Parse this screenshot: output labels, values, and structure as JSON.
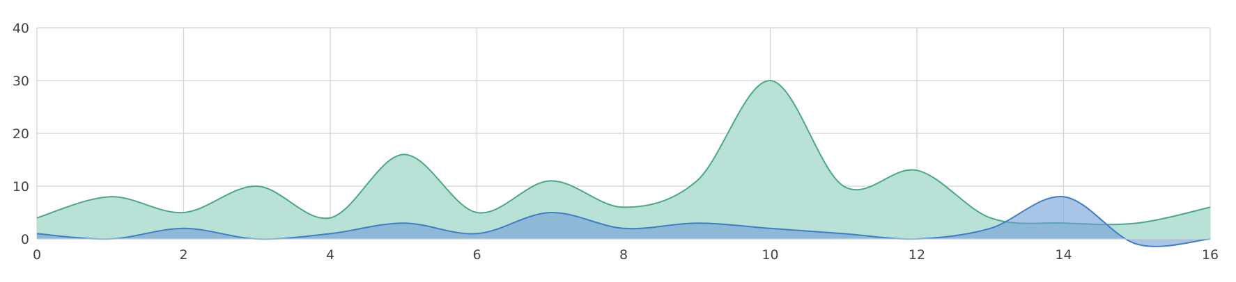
{
  "chart_data": {
    "type": "area",
    "x": [
      0,
      1,
      2,
      3,
      4,
      5,
      6,
      7,
      8,
      9,
      10,
      11,
      12,
      13,
      14,
      15,
      16
    ],
    "xlim": [
      0,
      16
    ],
    "ylim": [
      0,
      40
    ],
    "x_ticks": [
      0,
      2,
      4,
      6,
      8,
      10,
      12,
      14,
      16
    ],
    "y_ticks": [
      0,
      10,
      20,
      30,
      40
    ],
    "grid": true,
    "legend": "none",
    "title": "",
    "xlabel": "",
    "ylabel": "",
    "series": [
      {
        "values": [
          4,
          8,
          5,
          10,
          4,
          16,
          5,
          11,
          6,
          11,
          30,
          10,
          13,
          4,
          3,
          3,
          6
        ],
        "line_color": "#4ba68d",
        "fill_color": "#b9e2d6"
      },
      {
        "values": [
          1,
          0,
          2,
          0,
          1,
          3,
          1,
          5,
          2,
          3,
          2,
          1,
          0,
          2,
          8,
          -1,
          0
        ],
        "line_color": "#3f7dc6",
        "fill_color": "#6f9fd6"
      }
    ]
  }
}
